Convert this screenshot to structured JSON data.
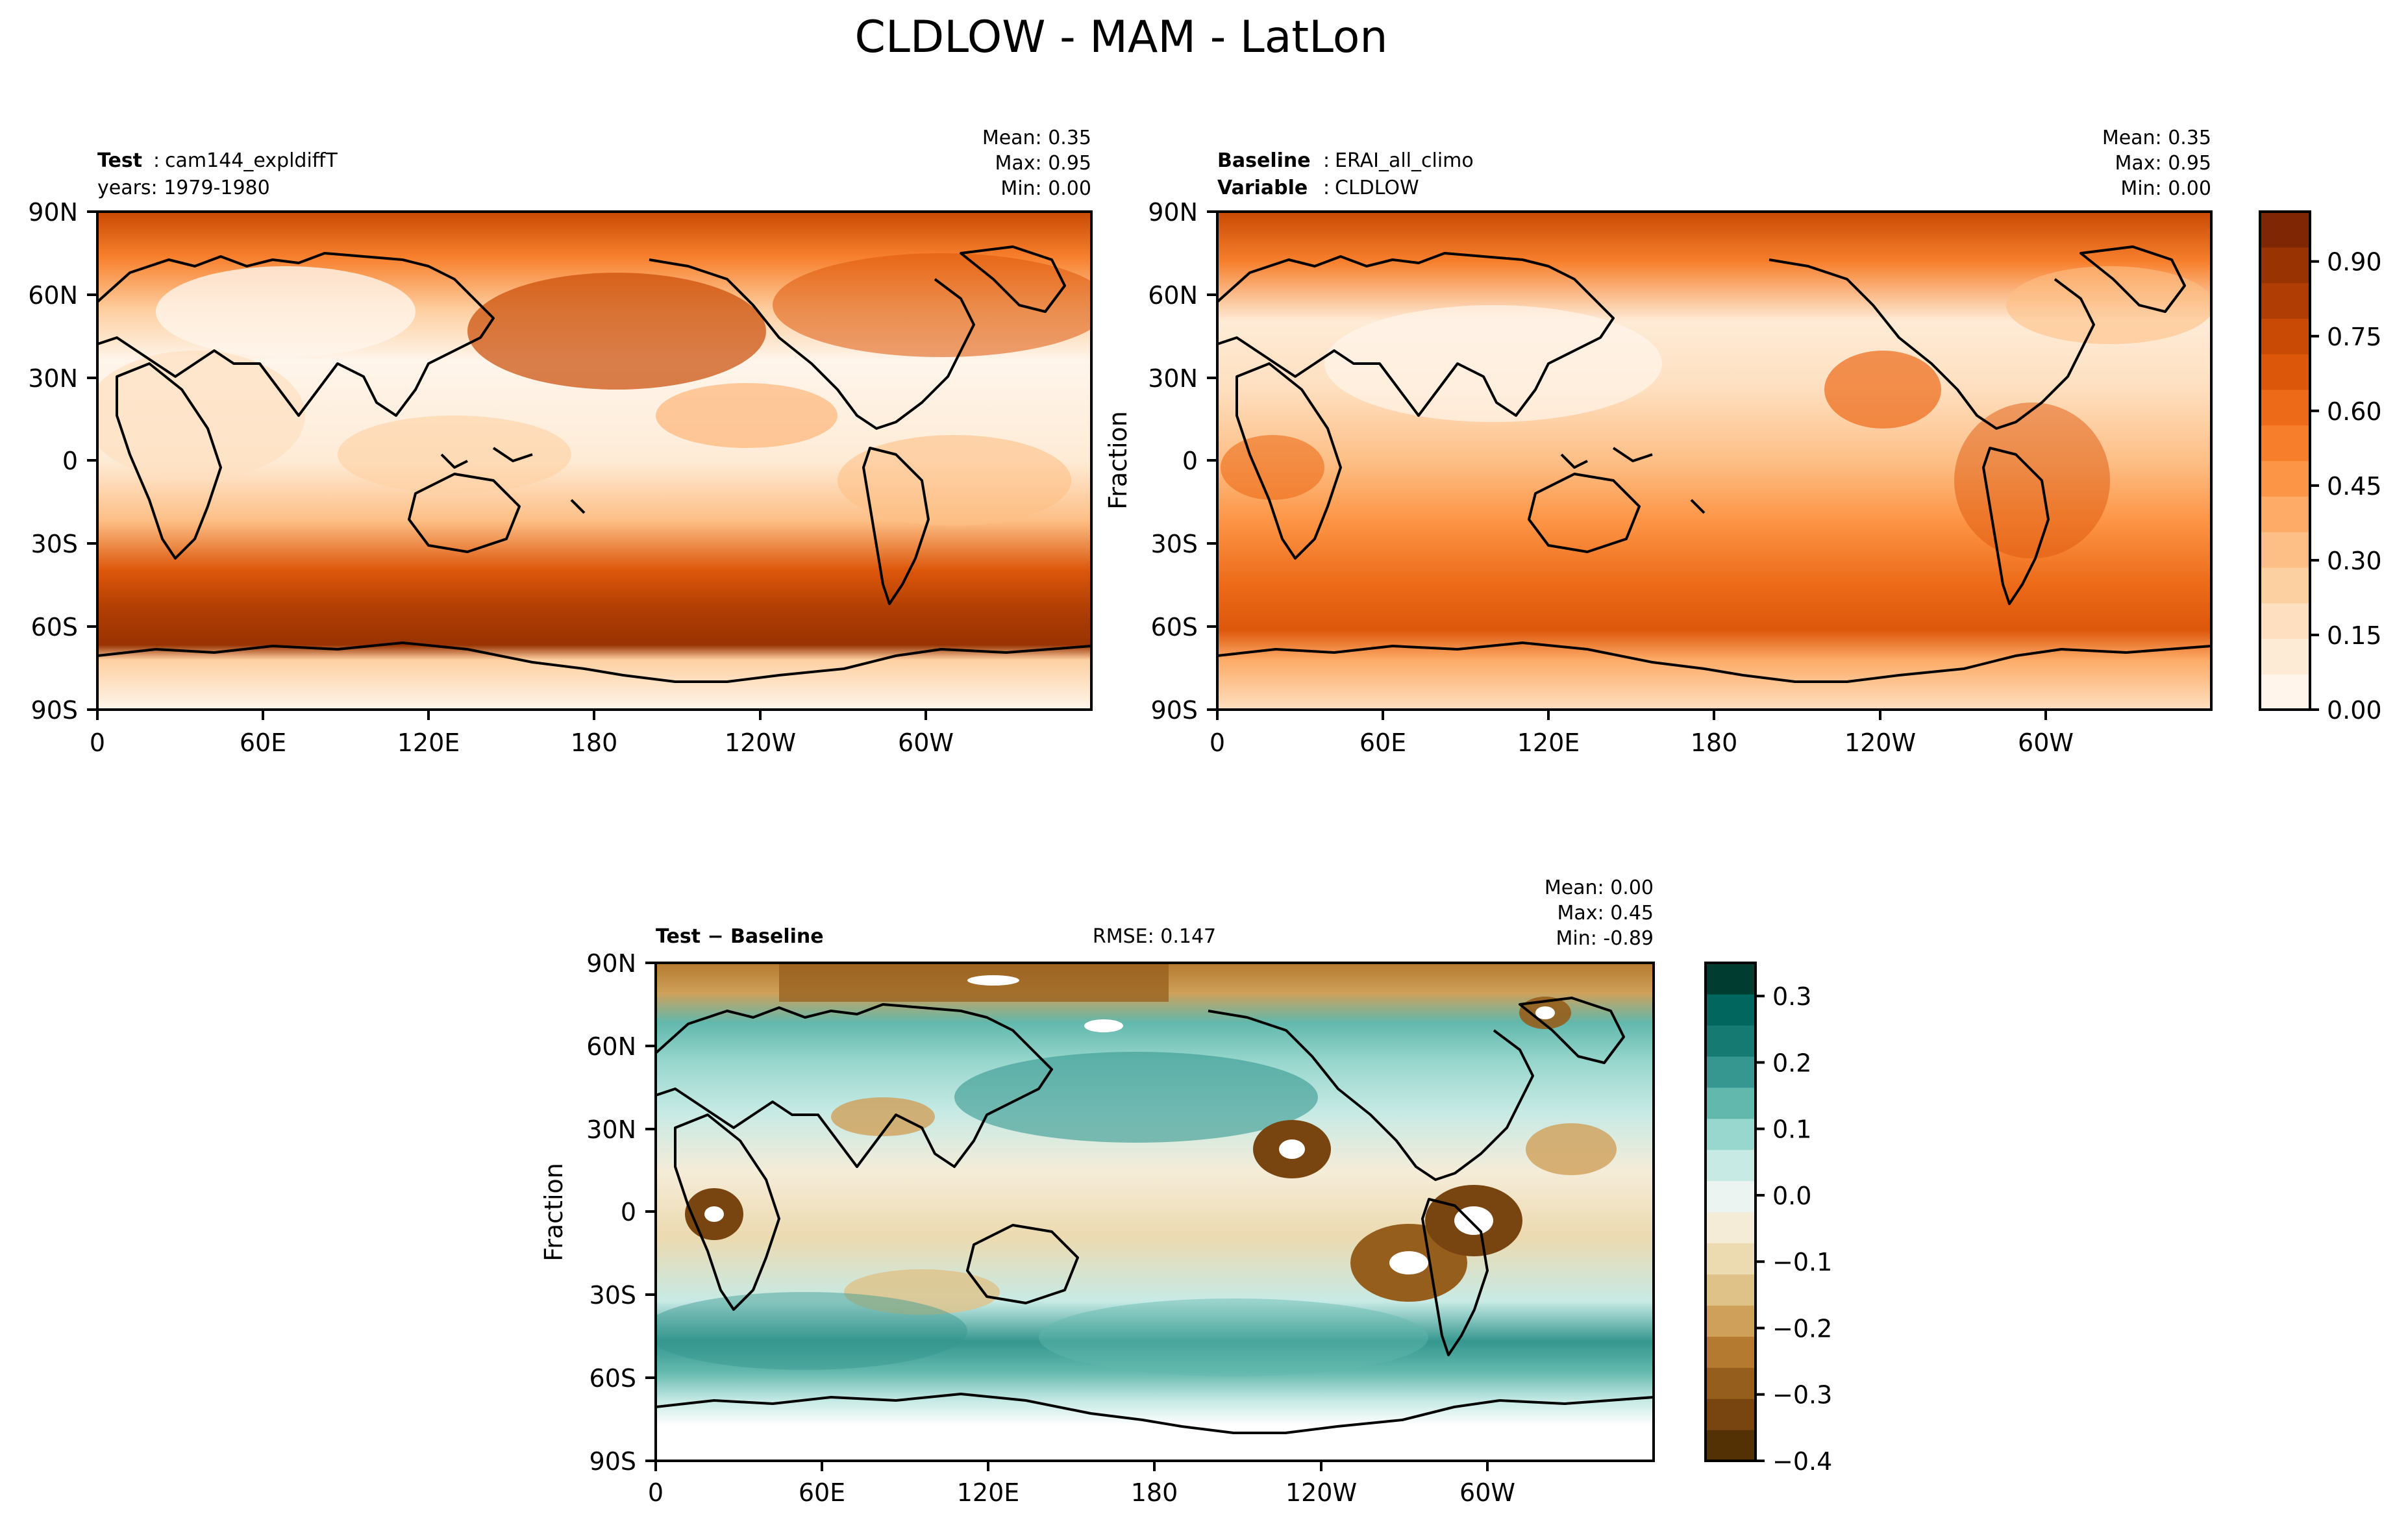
{
  "chart_data": {
    "type": "heatmap",
    "title": "CLDLOW - MAM - LatLon",
    "panels": [
      {
        "id": "test",
        "header_left_bold": "Test",
        "header_left_sep": ":",
        "header_left_value": "cam144_expldiffT",
        "header_left_line2": "years: 1979-1980",
        "stats_lines": [
          "Mean:  0.35",
          "Max:  0.95",
          "Min:  0.00"
        ],
        "ylabel": "",
        "xticks": [
          "0",
          "60E",
          "120E",
          "180",
          "120W",
          "60W"
        ],
        "yticks": [
          "90N",
          "60N",
          "30N",
          "0",
          "30S",
          "60S",
          "90S"
        ],
        "value_range": [
          0.0,
          1.0
        ]
      },
      {
        "id": "baseline",
        "header_left_bold": "Baseline",
        "header_left_sep": ":",
        "header_left_value": "ERAI_all_climo",
        "header_left_line2_bold": "Variable",
        "header_left_line2_value": "CLDLOW",
        "stats_lines": [
          "Mean:  0.35",
          "Max:  0.95",
          "Min:  0.00"
        ],
        "ylabel": "Fraction",
        "xticks": [
          "0",
          "60E",
          "120E",
          "180",
          "120W",
          "60W"
        ],
        "yticks": [
          "90N",
          "60N",
          "30N",
          "0",
          "30S",
          "60S",
          "90S"
        ],
        "value_range": [
          0.0,
          1.0
        ]
      },
      {
        "id": "diff",
        "header_left_bold": "Test − Baseline",
        "header_center": "RMSE: 0.147",
        "stats_lines": [
          "Mean:  0.00",
          "Max:  0.45",
          "Min: -0.89"
        ],
        "ylabel": "Fraction",
        "xticks": [
          "0",
          "60E",
          "120E",
          "180",
          "120W",
          "60W"
        ],
        "yticks": [
          "90N",
          "60N",
          "30N",
          "0",
          "30S",
          "60S",
          "90S"
        ],
        "value_range": [
          -0.4,
          0.35
        ]
      }
    ],
    "colorbars": [
      {
        "id": "main",
        "ticks": [
          "0.00",
          "0.15",
          "0.30",
          "0.45",
          "0.60",
          "0.75",
          "0.90"
        ],
        "tick_values": [
          0.0,
          0.15,
          0.3,
          0.45,
          0.6,
          0.75,
          0.9
        ],
        "range": [
          0.0,
          1.0
        ],
        "colors": [
          "#fff5eb",
          "#feebd6",
          "#fee0c1",
          "#fdd0a2",
          "#fdbf86",
          "#fdab67",
          "#fd9546",
          "#f77f2c",
          "#ec6a18",
          "#dd570b",
          "#c94a04",
          "#b03d03",
          "#993302",
          "#7f2704"
        ]
      },
      {
        "id": "diff",
        "ticks": [
          "0.3",
          "0.2",
          "0.1",
          "0.0",
          "−0.1",
          "−0.2",
          "−0.3",
          "−0.4"
        ],
        "tick_values": [
          0.3,
          0.2,
          0.1,
          0.0,
          -0.1,
          -0.2,
          -0.3,
          -0.4
        ],
        "range": [
          -0.4,
          0.35
        ],
        "colors": [
          "#543005",
          "#784510",
          "#955e1c",
          "#b47a2f",
          "#cfa05a",
          "#dfc288",
          "#ecdab0",
          "#f5ecd8",
          "#ecf4f2",
          "#c7eae5",
          "#98d7cd",
          "#62b8ad",
          "#35978f",
          "#157a71",
          "#01665e",
          "#003c30"
        ]
      }
    ]
  }
}
